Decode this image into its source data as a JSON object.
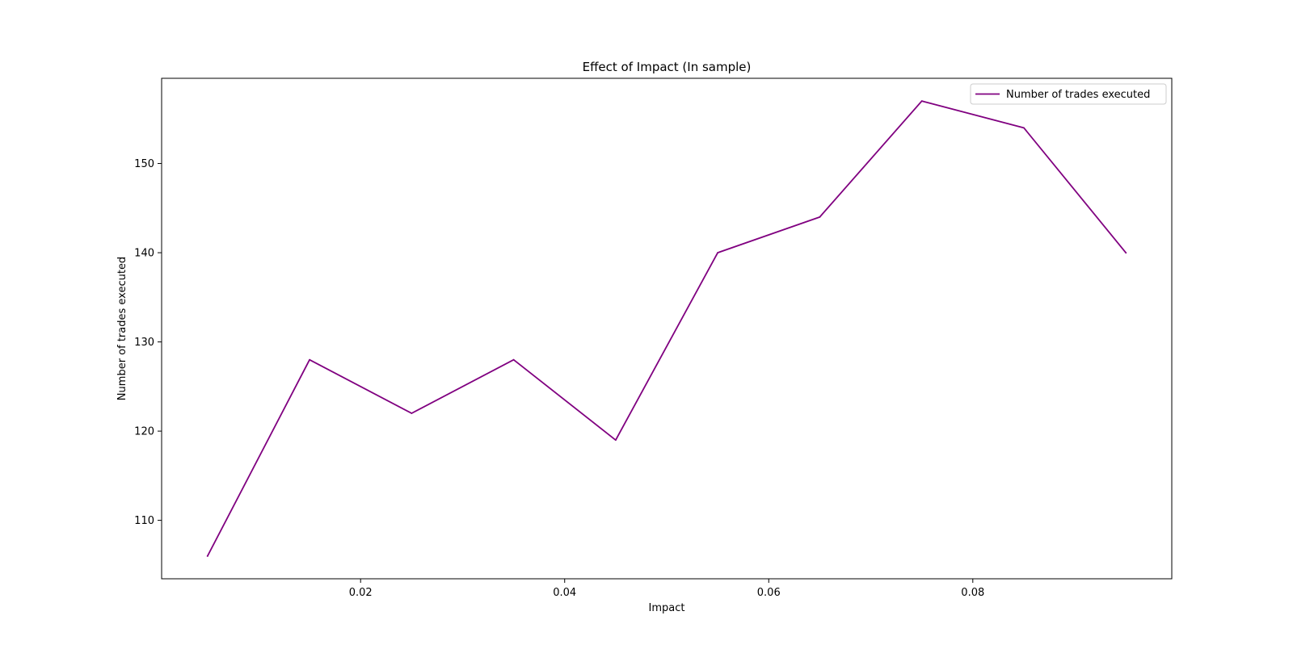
{
  "chart_data": {
    "type": "line",
    "title": "Effect of Impact (In sample)",
    "xlabel": "Impact",
    "ylabel": "Number of trades executed",
    "x": [
      0.005,
      0.015,
      0.025,
      0.035,
      0.045,
      0.055,
      0.065,
      0.075,
      0.085,
      0.095
    ],
    "series": [
      {
        "name": "Number of trades executed",
        "color": "#800080",
        "values": [
          106,
          128,
          122,
          128,
          119,
          140,
          144,
          157,
          154,
          140
        ]
      }
    ],
    "xlim": [
      0.0005,
      0.0995
    ],
    "ylim": [
      103.45,
      159.55
    ],
    "xticks": [
      0.02,
      0.04,
      0.06,
      0.08
    ],
    "xtick_labels": [
      "0.02",
      "0.04",
      "0.06",
      "0.08"
    ],
    "yticks": [
      110,
      120,
      130,
      140,
      150
    ],
    "ytick_labels": [
      "110",
      "120",
      "130",
      "140",
      "150"
    ],
    "grid": false,
    "legend_position": "top-right"
  }
}
